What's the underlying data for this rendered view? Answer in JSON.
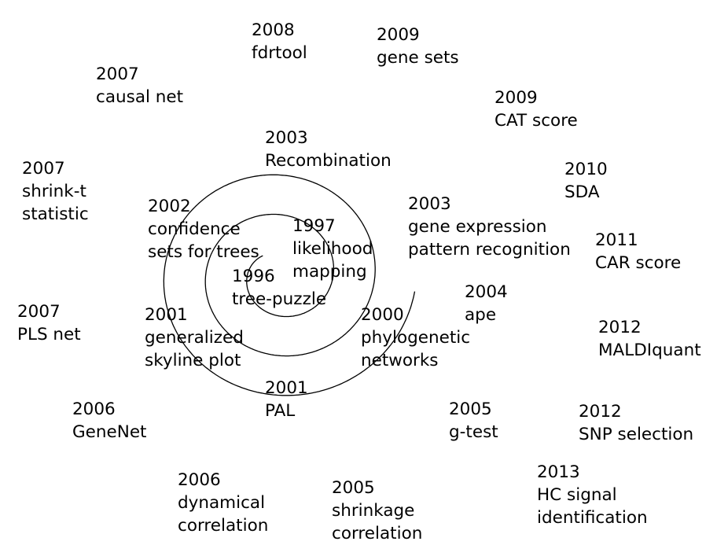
{
  "colors": {
    "line": "#000000",
    "text": "#000000",
    "background": "#ffffff"
  },
  "labels": [
    {
      "id": "l1996",
      "year": "1996",
      "lines": [
        "tree-puzzle"
      ]
    },
    {
      "id": "l1997",
      "year": "1997",
      "lines": [
        "likelihood",
        "mapping"
      ]
    },
    {
      "id": "l2000",
      "year": "2000",
      "lines": [
        "phylogenetic",
        "networks"
      ]
    },
    {
      "id": "l2001a",
      "year": "2001",
      "lines": [
        "PAL"
      ]
    },
    {
      "id": "l2001b",
      "year": "2001",
      "lines": [
        "generalized",
        "skyline plot"
      ]
    },
    {
      "id": "l2002",
      "year": "2002",
      "lines": [
        "confidence",
        "sets for trees"
      ]
    },
    {
      "id": "l2003a",
      "year": "2003",
      "lines": [
        "Recombination"
      ]
    },
    {
      "id": "l2003b",
      "year": "2003",
      "lines": [
        "gene expression",
        "pattern recognition"
      ]
    },
    {
      "id": "l2004",
      "year": "2004",
      "lines": [
        "ape"
      ]
    },
    {
      "id": "l2005a",
      "year": "2005",
      "lines": [
        "g-test"
      ]
    },
    {
      "id": "l2005b",
      "year": "2005",
      "lines": [
        "shrinkage",
        "correlation"
      ]
    },
    {
      "id": "l2006a",
      "year": "2006",
      "lines": [
        "dynamical",
        "correlation"
      ]
    },
    {
      "id": "l2006b",
      "year": "2006",
      "lines": [
        "GeneNet"
      ]
    },
    {
      "id": "l2007a",
      "year": "2007",
      "lines": [
        "PLS net"
      ]
    },
    {
      "id": "l2007b",
      "year": "2007",
      "lines": [
        "shrink-t",
        "statistic"
      ]
    },
    {
      "id": "l2007c",
      "year": "2007",
      "lines": [
        "causal net"
      ]
    },
    {
      "id": "l2008",
      "year": "2008",
      "lines": [
        "fdrtool"
      ]
    },
    {
      "id": "l2009a",
      "year": "2009",
      "lines": [
        "gene sets"
      ]
    },
    {
      "id": "l2009b",
      "year": "2009",
      "lines": [
        "CAT score"
      ]
    },
    {
      "id": "l2010",
      "year": "2010",
      "lines": [
        "SDA"
      ]
    },
    {
      "id": "l2011",
      "year": "2011",
      "lines": [
        "CAR score"
      ]
    },
    {
      "id": "l2012a",
      "year": "2012",
      "lines": [
        "MALDIquant"
      ]
    },
    {
      "id": "l2012b",
      "year": "2012",
      "lines": [
        "SNP selection"
      ]
    },
    {
      "id": "l2013",
      "year": "2013",
      "lines": [
        "HC signal",
        "identification"
      ]
    }
  ]
}
